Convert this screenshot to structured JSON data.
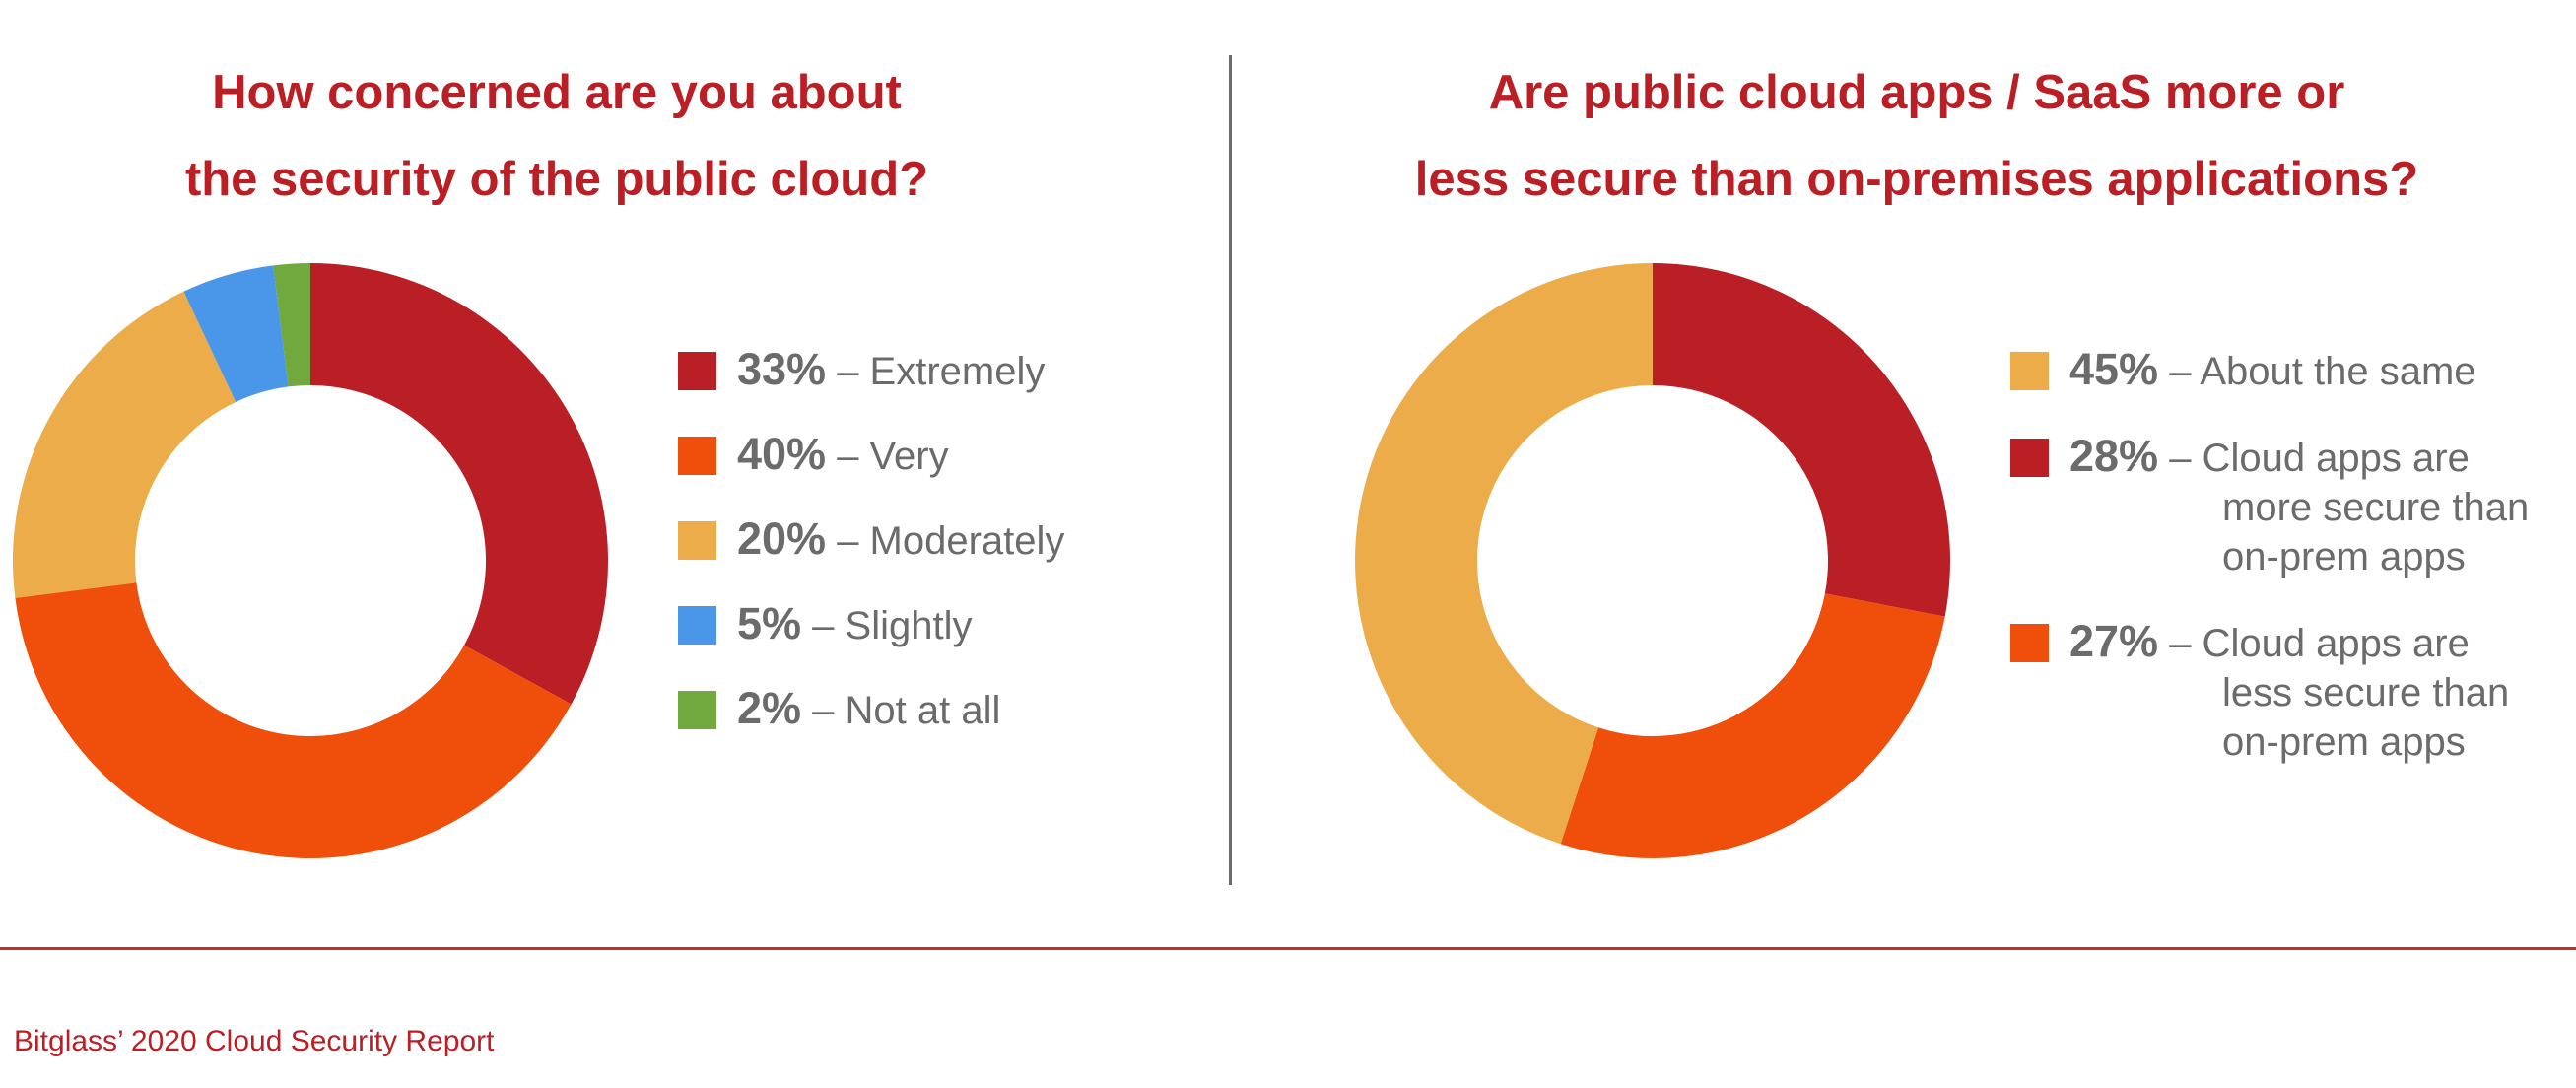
{
  "colors": {
    "title": "#b91f24",
    "legend_text": "#6b6b6b",
    "divider": "#6b6b6b",
    "rule": "#cc2a2a",
    "footer": "#b91f24"
  },
  "chart_data": [
    {
      "type": "pie",
      "variant": "donut",
      "title_lines": [
        "How concerned are you about",
        "the security of the public cloud?"
      ],
      "slices": [
        {
          "value": 33,
          "label": "33%",
          "name": "Extremely",
          "color": "#b91f24"
        },
        {
          "value": 40,
          "label": "40%",
          "name": "Very",
          "color": "#f04e0b"
        },
        {
          "value": 20,
          "label": "20%",
          "name": "Moderately",
          "color": "#ecac4a"
        },
        {
          "value": 5,
          "label": "5%",
          "name": "Slightly",
          "color": "#4a97ea"
        },
        {
          "value": 2,
          "label": "2%",
          "name": "Not at all",
          "color": "#71a93e"
        }
      ],
      "legend_position": "right"
    },
    {
      "type": "pie",
      "variant": "donut",
      "title_lines": [
        "Are public cloud apps / SaaS more or",
        "less secure than on-premises applications?"
      ],
      "slices": [
        {
          "value": 28,
          "label": "28%",
          "name_lines": [
            "Cloud apps are",
            "more secure than",
            "on-prem apps"
          ],
          "color": "#b91f24"
        },
        {
          "value": 27,
          "label": "27%",
          "name_lines": [
            "Cloud apps are",
            "less secure than",
            "on-prem apps"
          ],
          "color": "#f04e0b"
        },
        {
          "value": 45,
          "label": "45%",
          "name_lines": [
            "About the same"
          ],
          "color": "#ecac4a"
        }
      ],
      "legend_order": [
        2,
        0,
        1
      ],
      "legend_position": "right"
    }
  ],
  "footer": {
    "text": "Bitglass’ 2020 Cloud Security Report"
  }
}
